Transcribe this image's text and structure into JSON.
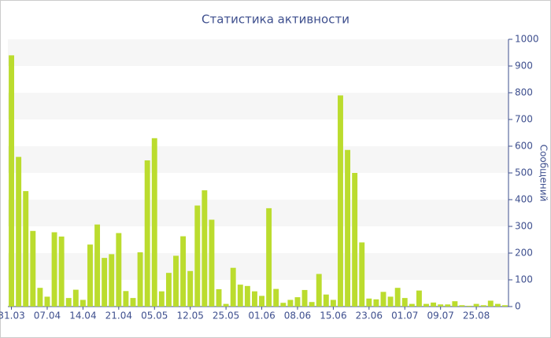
{
  "chart_data": {
    "type": "bar",
    "title": "Статистика активности",
    "y_label": "Сообщений",
    "categories": [
      "31.03",
      null,
      null,
      null,
      null,
      "07.04",
      null,
      null,
      null,
      null,
      "14.04",
      null,
      null,
      null,
      null,
      "21.04",
      null,
      null,
      null,
      null,
      "05.05",
      null,
      null,
      null,
      null,
      "12.05",
      null,
      null,
      null,
      null,
      "25.05",
      null,
      null,
      null,
      null,
      "01.06",
      null,
      null,
      null,
      null,
      "08.06",
      null,
      null,
      null,
      null,
      "15.06",
      null,
      null,
      null,
      null,
      "23.06",
      null,
      null,
      null,
      null,
      "01.07",
      null,
      null,
      null,
      null,
      "09.07",
      null,
      null,
      null,
      null,
      "25.08",
      null,
      null,
      null,
      null
    ],
    "values": [
      940,
      560,
      432,
      283,
      70,
      37,
      278,
      262,
      32,
      63,
      25,
      232,
      307,
      182,
      196,
      275,
      58,
      32,
      203,
      547,
      630,
      57,
      126,
      190,
      263,
      133,
      378,
      435,
      325,
      65,
      10,
      145,
      82,
      77,
      57,
      40,
      368,
      66,
      14,
      25,
      35,
      62,
      17,
      122,
      45,
      25,
      790,
      586,
      500,
      240,
      30,
      27,
      55,
      37,
      70,
      32,
      10,
      60,
      10,
      15,
      8,
      8,
      20,
      5,
      3,
      10,
      5,
      22,
      10,
      5
    ],
    "color": "#bbdc2e",
    "ylim": [
      0,
      1000
    ],
    "yticks": [
      0,
      100,
      200,
      300,
      400,
      500,
      600,
      700,
      800,
      900,
      1000
    ],
    "grid": true,
    "y_axis_side": "right"
  }
}
